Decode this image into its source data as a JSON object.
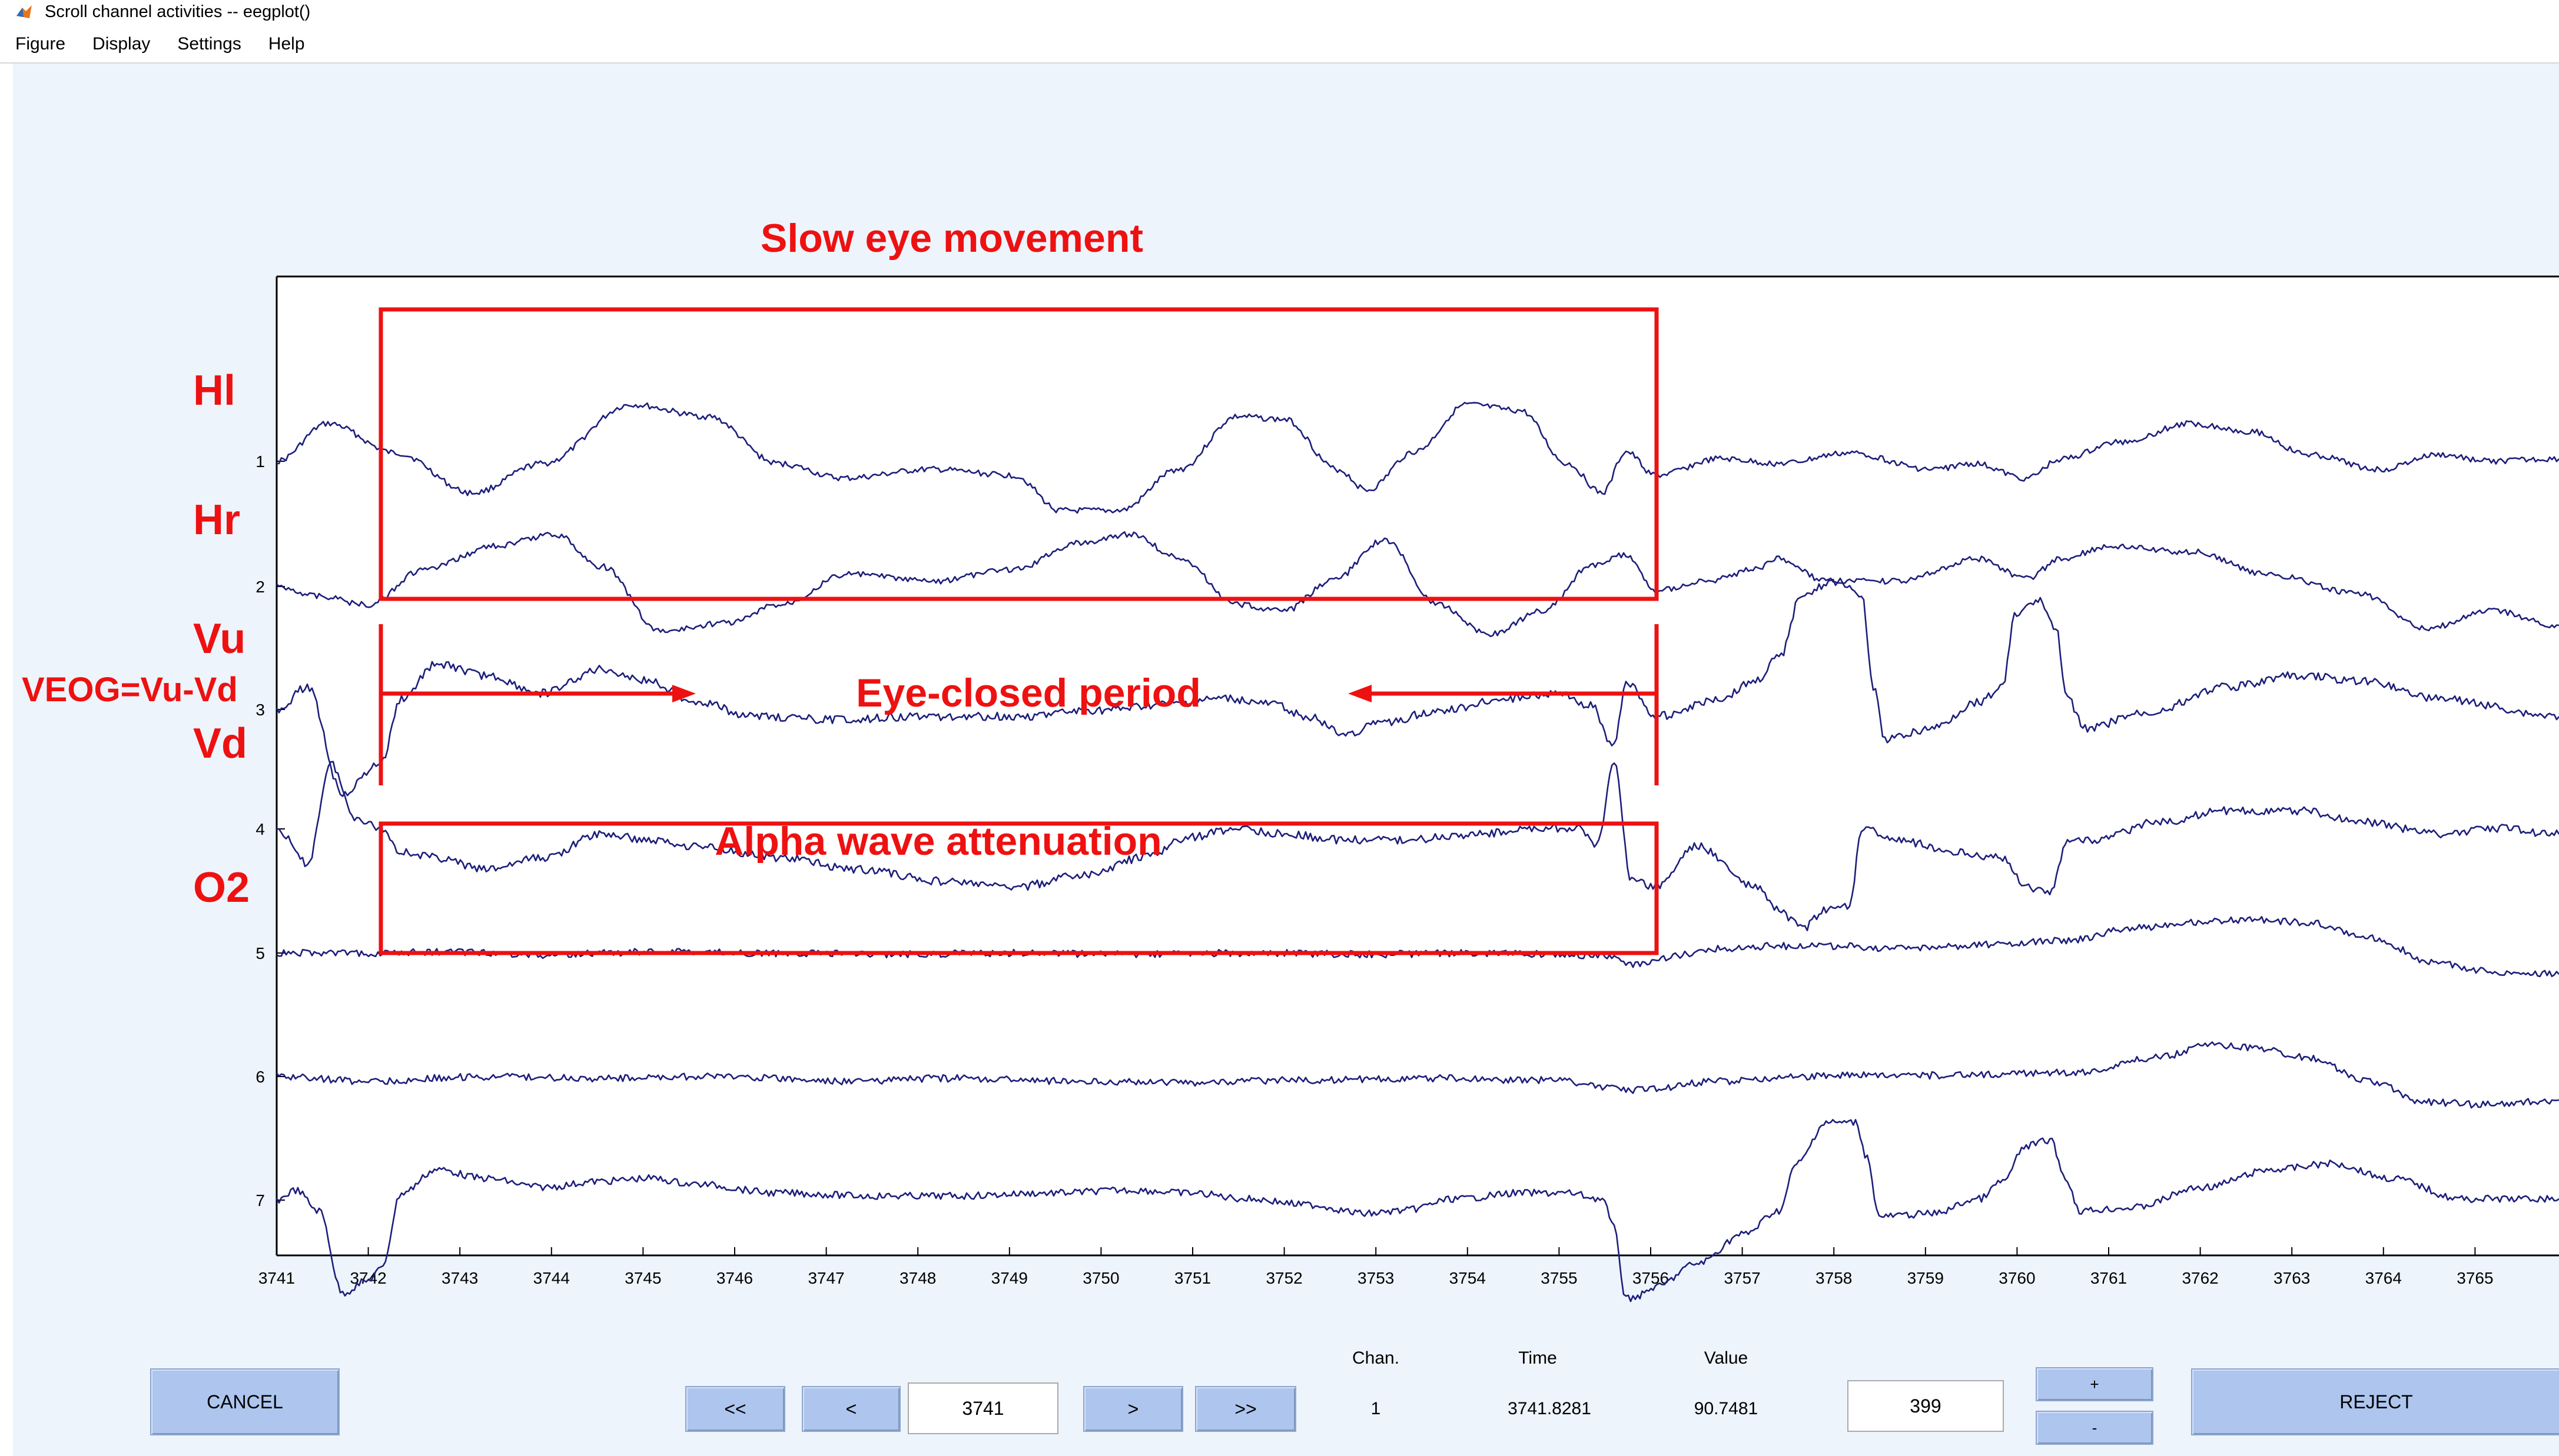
{
  "window": {
    "title": "Scroll channel activities -- eegplot()"
  },
  "menu": [
    "Figure",
    "Display",
    "Settings",
    "Help"
  ],
  "plot": {
    "x_ticks": [
      "3741",
      "3742",
      "3743",
      "3744",
      "3745",
      "3746",
      "3747",
      "3748",
      "3749",
      "3750",
      "3751",
      "3752",
      "3753",
      "3754",
      "3755",
      "3756",
      "3757",
      "3758",
      "3759",
      "3760",
      "3761",
      "3762",
      "3763",
      "3764",
      "3765"
    ],
    "channel_numbers": [
      "1",
      "2",
      "3",
      "4",
      "5",
      "6",
      "7"
    ],
    "channel_names": [
      "Hl",
      "Hr",
      "Vu",
      "Vd",
      "O2"
    ],
    "veog_label": "VEOG=Vu-Vd",
    "annotations": {
      "slow_eye": "Slow eye movement",
      "eye_closed": "Eye-closed period",
      "alpha": "Alpha wave attenuation"
    },
    "colors": {
      "trace": "#1c1e7a",
      "annotation": "#ee1111",
      "background": "#edf4fc"
    }
  },
  "controls": {
    "cancel": "CANCEL",
    "prev_page": "<<",
    "prev": "<",
    "position": "3741",
    "next": ">",
    "next_page": ">>",
    "chan_label": "Chan.",
    "time_label": "Time",
    "value_label": "Value",
    "chan_value": "1",
    "time_value": "3741.8281",
    "value_value": "90.7481",
    "scale": "399",
    "plus": "+",
    "minus": "-",
    "reject": "REJECT"
  }
}
